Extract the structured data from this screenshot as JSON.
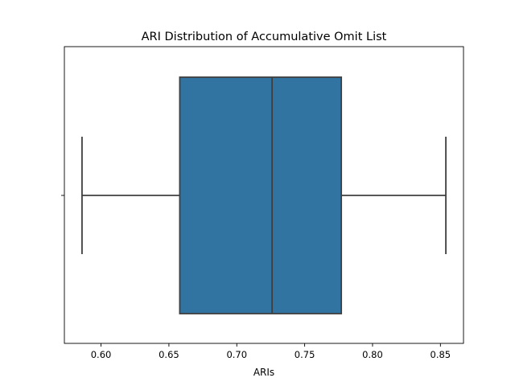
{
  "chart_data": {
    "type": "box",
    "title": "ARI Distribution of Accumulative Omit List",
    "xlabel": "ARIs",
    "ylabel": "",
    "orientation": "horizontal",
    "xlim": [
      0.573,
      0.867
    ],
    "xticks": [
      0.6,
      0.65,
      0.7,
      0.75,
      0.8,
      0.85
    ],
    "xtick_labels": [
      "0.60",
      "0.65",
      "0.70",
      "0.75",
      "0.80",
      "0.85"
    ],
    "grid": false,
    "series": [
      {
        "whisker_low": 0.586,
        "q1": 0.658,
        "median": 0.726,
        "q3": 0.777,
        "whisker_high": 0.854,
        "color": "#3274a1",
        "edge_color": "#3f3f3f"
      }
    ]
  }
}
